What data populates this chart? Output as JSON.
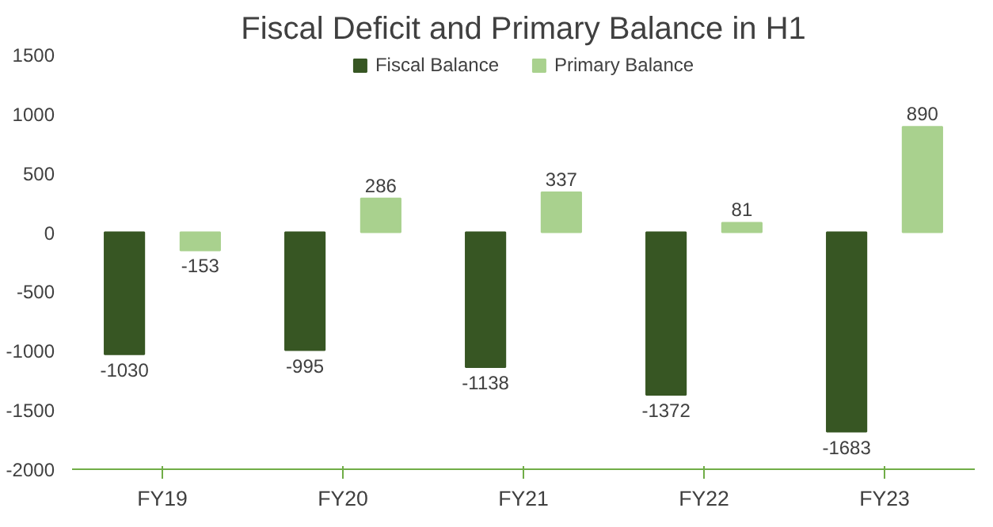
{
  "chart_data": {
    "type": "bar",
    "title": "Fiscal Deficit and Primary Balance in H1",
    "categories": [
      "FY19",
      "FY20",
      "FY21",
      "FY22",
      "FY23"
    ],
    "series": [
      {
        "name": "Fiscal Balance",
        "color": "#375623",
        "values": [
          -1030,
          -995,
          -1138,
          -1372,
          -1683
        ]
      },
      {
        "name": "Primary Balance",
        "color": "#a9d18e",
        "values": [
          -153,
          286,
          337,
          81,
          890
        ]
      }
    ],
    "ylim": [
      -2000,
      1500
    ],
    "yticks": [
      -2000,
      -1500,
      -1000,
      -500,
      0,
      500,
      1000,
      1500
    ],
    "data_labels": true,
    "legend": "top",
    "grid": false
  }
}
